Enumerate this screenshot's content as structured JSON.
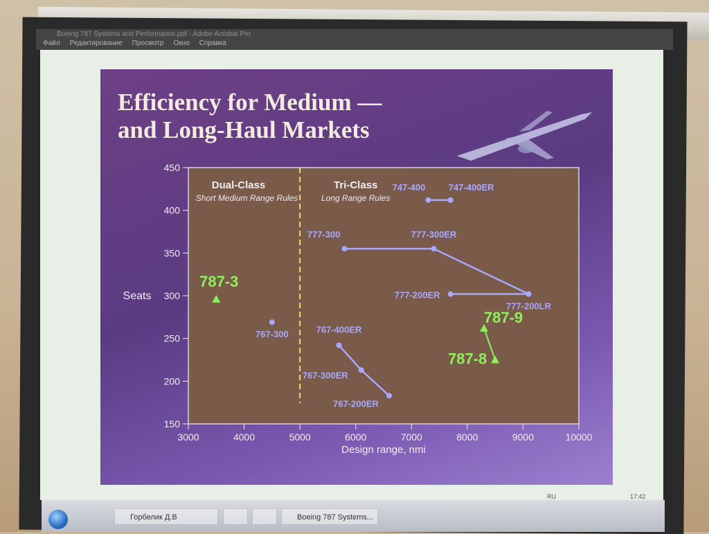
{
  "app": {
    "window_title": "Boeing 787 Systems and Performance.pdf - Adobe Acrobat Pro",
    "menu": [
      "Файл",
      "Редактирование",
      "Просмотр",
      "Окно",
      "Справка"
    ]
  },
  "taskbar": {
    "items": [
      "Горбелик Д.В",
      "",
      "",
      "Boeing 787 Systems..."
    ],
    "tray_lang": "RU",
    "clock": "17:42"
  },
  "slide": {
    "title_line1": "Efficiency for Medium —",
    "title_line2": "and Long-Haul Markets"
  },
  "colors": {
    "plot_bg": "#7a5a48",
    "lavender": "#a8a8ff",
    "green": "#8ef05c",
    "divider": "#e8e070",
    "text": "#f0ecf4"
  },
  "chart_data": {
    "type": "scatter",
    "xlabel": "Design range, nmi",
    "ylabel": "Seats",
    "xlim": [
      3000,
      10000
    ],
    "ylim": [
      150,
      450
    ],
    "xticks": [
      3000,
      4000,
      5000,
      6000,
      7000,
      8000,
      9000,
      10000
    ],
    "yticks": [
      150,
      200,
      250,
      300,
      350,
      400,
      450
    ],
    "divider_x": 5000,
    "regions": [
      {
        "title": "Dual-Class",
        "subtitle": "Short Medium Range Rules"
      },
      {
        "title": "Tri-Class",
        "subtitle": "Long Range Rules"
      }
    ],
    "lines": [
      {
        "points": [
          [
            7300,
            412
          ],
          [
            7700,
            412
          ]
        ],
        "labels": [
          "747-400",
          "747-400ER"
        ]
      },
      {
        "points": [
          [
            5800,
            355
          ],
          [
            7400,
            355
          ],
          [
            9100,
            302
          ]
        ],
        "labels": [
          "777-300",
          "777-300ER",
          "777-200LR"
        ]
      },
      {
        "points": [
          [
            7700,
            302
          ],
          [
            9100,
            302
          ]
        ],
        "labels": [
          "777-200ER"
        ]
      },
      {
        "points": [
          [
            5700,
            242
          ],
          [
            6100,
            213
          ],
          [
            6600,
            183
          ]
        ],
        "labels": [
          "767-400ER",
          "767-300ER",
          "767-200ER"
        ]
      }
    ],
    "points": [
      {
        "name": "767-300",
        "x": 4500,
        "y": 269
      }
    ],
    "highlights": [
      {
        "name": "787-3",
        "x": 3500,
        "y": 296
      },
      {
        "name": "787-8",
        "x": 8500,
        "y": 225
      },
      {
        "name": "787-9",
        "x": 8300,
        "y": 262
      }
    ]
  }
}
